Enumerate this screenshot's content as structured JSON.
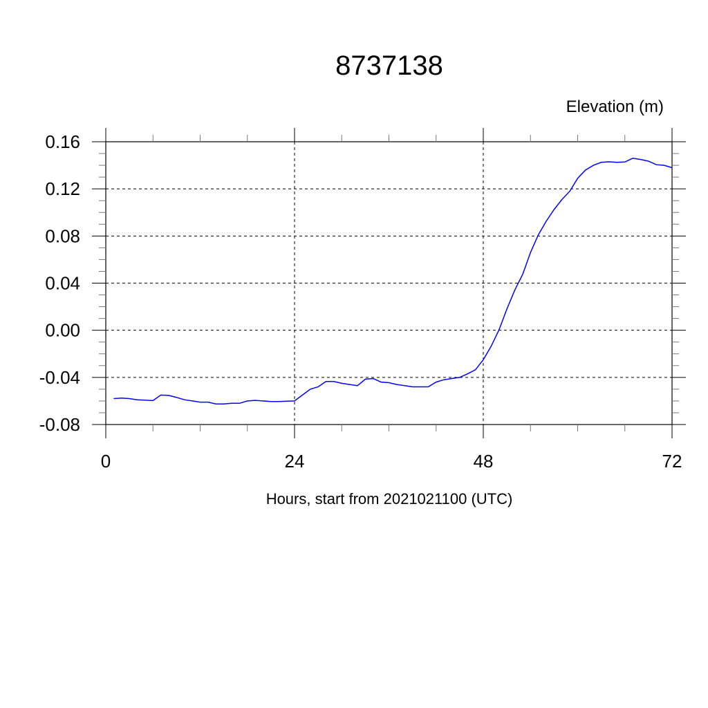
{
  "chart_data": {
    "type": "line",
    "title": "8737138",
    "ylabel": "Elevation (m)",
    "xlabel": "Hours, start from 2021021100 (UTC)",
    "xlim": [
      0,
      72
    ],
    "ylim": [
      -0.08,
      0.16
    ],
    "x_ticks": [
      0,
      24,
      48,
      72
    ],
    "x_tick_labels": [
      "0",
      "24",
      "48",
      "72"
    ],
    "x_minor_step": 6,
    "y_ticks": [
      -0.08,
      -0.04,
      0.0,
      0.04,
      0.08,
      0.12,
      0.16
    ],
    "y_tick_labels": [
      "-0.08",
      "-0.04",
      "0.00",
      "0.04",
      "0.08",
      "0.12",
      "0.16"
    ],
    "y_minor_step": 0.01,
    "grid": true,
    "series": [
      {
        "name": "Elevation",
        "color": "#0000ff",
        "x": [
          1,
          2,
          3,
          4,
          5,
          6,
          7,
          8,
          9,
          10,
          11,
          12,
          13,
          14,
          15,
          16,
          17,
          18,
          19,
          20,
          21,
          22,
          23,
          24,
          25,
          26,
          27,
          28,
          29,
          30,
          31,
          32,
          33,
          34,
          35,
          36,
          37,
          38,
          39,
          40,
          41,
          42,
          43,
          44,
          45,
          46,
          47,
          48,
          49,
          50,
          51,
          52,
          53,
          54,
          55,
          56,
          57,
          58,
          59,
          60,
          61,
          62,
          63,
          64,
          65,
          66,
          67,
          68,
          69,
          70,
          71,
          72
        ],
        "values": [
          -0.058,
          -0.0575,
          -0.058,
          -0.059,
          -0.0593,
          -0.0597,
          -0.055,
          -0.0553,
          -0.057,
          -0.059,
          -0.06,
          -0.061,
          -0.061,
          -0.0625,
          -0.0625,
          -0.062,
          -0.062,
          -0.06,
          -0.0595,
          -0.06,
          -0.0605,
          -0.0605,
          -0.0602,
          -0.06,
          -0.055,
          -0.05,
          -0.048,
          -0.0435,
          -0.0435,
          -0.045,
          -0.046,
          -0.047,
          -0.0415,
          -0.041,
          -0.044,
          -0.0445,
          -0.046,
          -0.047,
          -0.048,
          -0.048,
          -0.048,
          -0.044,
          -0.042,
          -0.041,
          -0.04,
          -0.037,
          -0.0335,
          -0.025,
          -0.0135,
          0.0004,
          0.018,
          0.034,
          0.0474,
          0.066,
          0.081,
          0.0925,
          0.1025,
          0.111,
          0.118,
          0.129,
          0.136,
          0.14,
          0.1425,
          0.143,
          0.1425,
          0.1428,
          0.146,
          0.145,
          0.1435,
          0.1405,
          0.14,
          0.138
        ]
      }
    ]
  }
}
